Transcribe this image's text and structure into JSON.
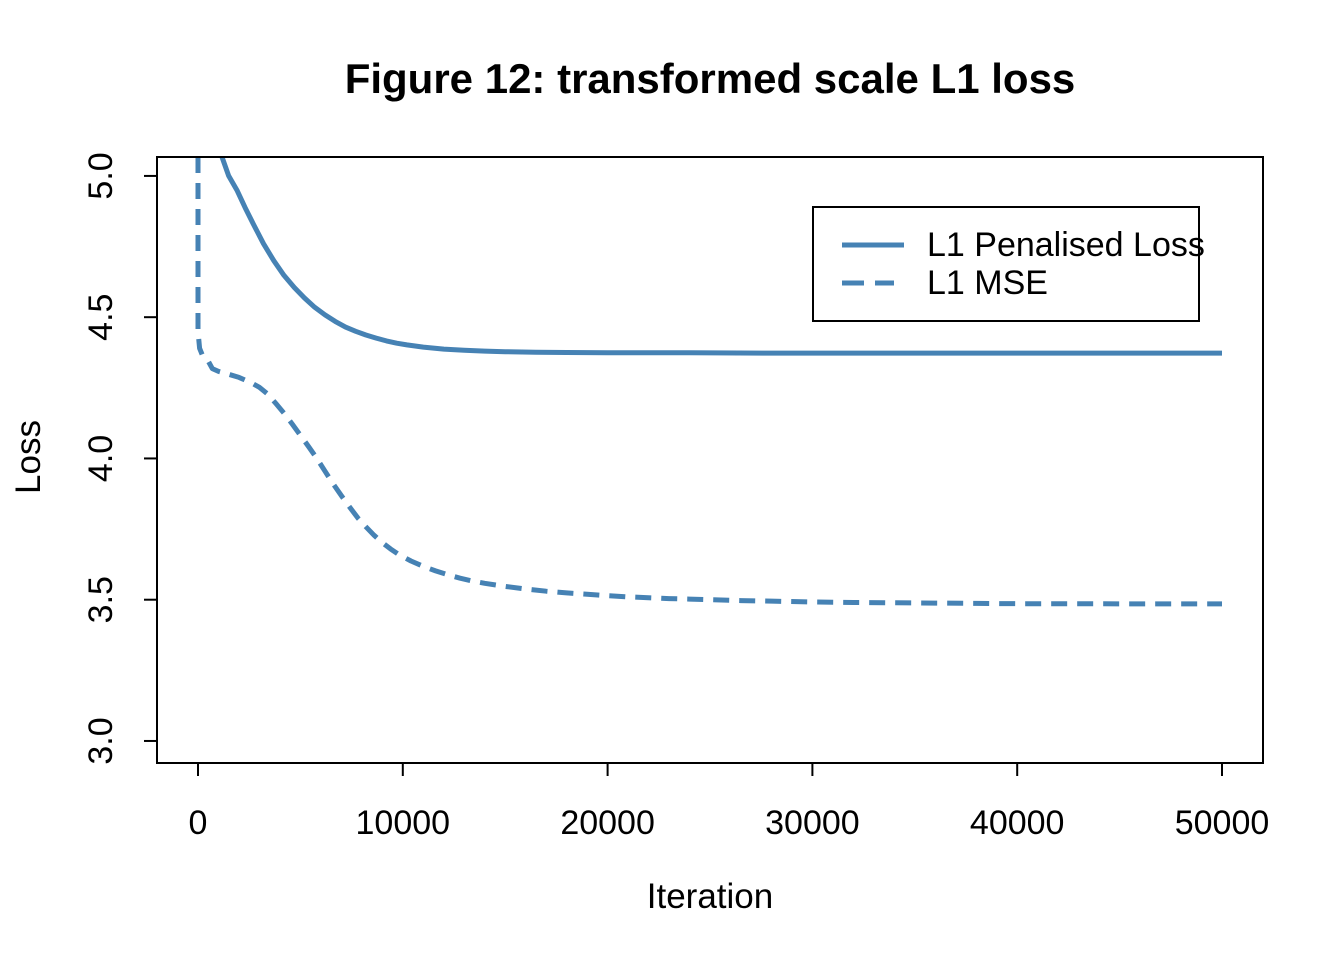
{
  "chart_data": {
    "type": "line",
    "title": "Figure 12: transformed scale L1 loss",
    "xlabel": "Iteration",
    "ylabel": "Loss",
    "grid": false,
    "xlim": [
      -2002,
      52002
    ],
    "ylim": [
      2.922,
      5.067
    ],
    "axis_color": "#000000",
    "line_color": "#4682B4",
    "x_ticks": [
      {
        "value": 0,
        "label": "0"
      },
      {
        "value": 10000,
        "label": "10000"
      },
      {
        "value": 20000,
        "label": "20000"
      },
      {
        "value": 30000,
        "label": "30000"
      },
      {
        "value": 40000,
        "label": "40000"
      },
      {
        "value": 50000,
        "label": "50000"
      }
    ],
    "y_ticks": [
      {
        "value": 3.0,
        "label": "3.0"
      },
      {
        "value": 3.5,
        "label": "3.5"
      },
      {
        "value": 4.0,
        "label": "4.0"
      },
      {
        "value": 4.5,
        "label": "4.5"
      },
      {
        "value": 5.0,
        "label": "5.0"
      }
    ],
    "legend": {
      "position": "top-right",
      "entries": [
        {
          "label": "L1 Penalised Loss",
          "style": "solid"
        },
        {
          "label": "L1 MSE",
          "style": "dashed"
        }
      ]
    },
    "series": [
      {
        "name": "L1 Penalised Loss",
        "style": "solid",
        "points": [
          [
            1170,
            5.067
          ],
          [
            1500,
            5.0
          ],
          [
            1900,
            4.95
          ],
          [
            2300,
            4.888
          ],
          [
            2700,
            4.83
          ],
          [
            3200,
            4.76
          ],
          [
            3700,
            4.7
          ],
          [
            4200,
            4.648
          ],
          [
            4700,
            4.605
          ],
          [
            5200,
            4.568
          ],
          [
            5700,
            4.535
          ],
          [
            6200,
            4.508
          ],
          [
            6700,
            4.485
          ],
          [
            7200,
            4.465
          ],
          [
            7700,
            4.45
          ],
          [
            8200,
            4.437
          ],
          [
            8700,
            4.426
          ],
          [
            9200,
            4.416
          ],
          [
            9700,
            4.408
          ],
          [
            10200,
            4.402
          ],
          [
            11000,
            4.394
          ],
          [
            12000,
            4.387
          ],
          [
            13000,
            4.383
          ],
          [
            14000,
            4.38
          ],
          [
            15000,
            4.378
          ],
          [
            16500,
            4.376
          ],
          [
            18000,
            4.375
          ],
          [
            20000,
            4.374
          ],
          [
            24000,
            4.374
          ],
          [
            28000,
            4.373
          ],
          [
            34000,
            4.373
          ],
          [
            40000,
            4.373
          ],
          [
            45000,
            4.373
          ],
          [
            50000,
            4.373
          ]
        ]
      },
      {
        "name": "L1 MSE",
        "style": "dashed",
        "points": [
          [
            0,
            5.067
          ],
          [
            0,
            4.45
          ],
          [
            80,
            4.39
          ],
          [
            200,
            4.368
          ],
          [
            350,
            4.358
          ],
          [
            500,
            4.345
          ],
          [
            700,
            4.318
          ],
          [
            1000,
            4.308
          ],
          [
            1400,
            4.3
          ],
          [
            2000,
            4.287
          ],
          [
            2600,
            4.268
          ],
          [
            3000,
            4.252
          ],
          [
            3400,
            4.228
          ],
          [
            3800,
            4.195
          ],
          [
            4200,
            4.16
          ],
          [
            4600,
            4.122
          ],
          [
            5000,
            4.082
          ],
          [
            5400,
            4.042
          ],
          [
            5800,
            4.0
          ],
          [
            6200,
            3.955
          ],
          [
            6600,
            3.91
          ],
          [
            7000,
            3.868
          ],
          [
            7400,
            3.828
          ],
          [
            7800,
            3.79
          ],
          [
            8200,
            3.758
          ],
          [
            8600,
            3.728
          ],
          [
            9000,
            3.702
          ],
          [
            9400,
            3.68
          ],
          [
            9800,
            3.66
          ],
          [
            10400,
            3.637
          ],
          [
            11000,
            3.618
          ],
          [
            11600,
            3.602
          ],
          [
            12200,
            3.588
          ],
          [
            12800,
            3.576
          ],
          [
            13400,
            3.566
          ],
          [
            14000,
            3.558
          ],
          [
            15000,
            3.547
          ],
          [
            16000,
            3.538
          ],
          [
            17000,
            3.53
          ],
          [
            18000,
            3.524
          ],
          [
            19000,
            3.519
          ],
          [
            20000,
            3.514
          ],
          [
            21000,
            3.51
          ],
          [
            22000,
            3.507
          ],
          [
            23000,
            3.504
          ],
          [
            24000,
            3.502
          ],
          [
            25000,
            3.5
          ],
          [
            26500,
            3.497
          ],
          [
            28000,
            3.495
          ],
          [
            30000,
            3.492
          ],
          [
            32000,
            3.49
          ],
          [
            34000,
            3.489
          ],
          [
            36000,
            3.488
          ],
          [
            38000,
            3.487
          ],
          [
            40000,
            3.486
          ],
          [
            43000,
            3.486
          ],
          [
            46000,
            3.485
          ],
          [
            50000,
            3.485
          ]
        ]
      }
    ]
  }
}
